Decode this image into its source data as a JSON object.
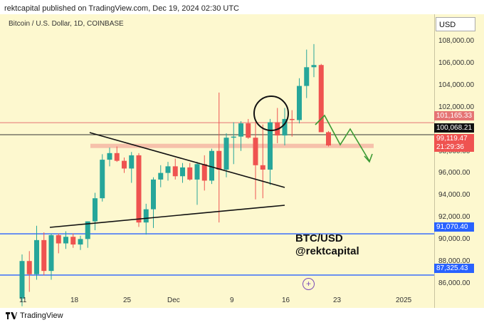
{
  "header": {
    "publish_line": "rektcapital published on TradingView.com, Dec 19, 2024 02:30 UTC"
  },
  "chart": {
    "symbol_line": "Bitcoin / U.S. Dollar, 1D, COINBASE",
    "currency_button": "USD",
    "annotation_line1": "BTC/USD",
    "annotation_line2": "@rektcapital",
    "add_icon": "plus-circle-icon"
  },
  "price_labels": [
    {
      "text": "101,165.33",
      "color": "#e57373"
    },
    {
      "text": "100,068.21",
      "color": "#111111"
    },
    {
      "text": "99,119.47",
      "color": "#ef5350"
    },
    {
      "text": "21:29:36",
      "color": "#ef5350"
    },
    {
      "text": "91,070.40",
      "color": "#2962ff"
    },
    {
      "text": "87,325.43",
      "color": "#2962ff"
    }
  ],
  "footer": {
    "brand": "TradingView",
    "logo_icon": "tradingview-logo-icon"
  },
  "colors": {
    "up": "#26a69a",
    "down": "#ef5350",
    "background": "#fdf8cf",
    "level_line": "#2962ff"
  },
  "chart_data": {
    "type": "candlestick",
    "title": "Bitcoin / U.S. Dollar, 1D, COINBASE",
    "y_axis": {
      "ticks": [
        "108,000.00",
        "106,000.00",
        "104,000.00",
        "102,000.00",
        "100,000.00",
        "98,000.00",
        "96,000.00",
        "94,000.00",
        "92,000.00",
        "90,000.00",
        "88,000.00",
        "86,000.00"
      ],
      "range": [
        84500,
        109800
      ]
    },
    "x_axis": {
      "ticks": [
        "11",
        "18",
        "25",
        "Dec",
        "9",
        "16",
        "23",
        "2025"
      ]
    },
    "candles": [
      {
        "o": 85200,
        "h": 89200,
        "l": 84500,
        "c": 88600
      },
      {
        "o": 88600,
        "h": 89500,
        "l": 85800,
        "c": 87400
      },
      {
        "o": 87400,
        "h": 91800,
        "l": 86900,
        "c": 90500
      },
      {
        "o": 90500,
        "h": 91200,
        "l": 87300,
        "c": 87700
      },
      {
        "o": 87700,
        "h": 91100,
        "l": 86900,
        "c": 90950
      },
      {
        "o": 90950,
        "h": 91100,
        "l": 89300,
        "c": 90200
      },
      {
        "o": 90200,
        "h": 91300,
        "l": 89700,
        "c": 90800
      },
      {
        "o": 90800,
        "h": 91100,
        "l": 89800,
        "c": 90100
      },
      {
        "o": 90100,
        "h": 90900,
        "l": 89600,
        "c": 90600
      },
      {
        "o": 90600,
        "h": 92200,
        "l": 89800,
        "c": 92200
      },
      {
        "o": 92200,
        "h": 94800,
        "l": 91400,
        "c": 94300
      },
      {
        "o": 94300,
        "h": 98300,
        "l": 94000,
        "c": 97800
      },
      {
        "o": 97800,
        "h": 98900,
        "l": 97200,
        "c": 98400
      },
      {
        "o": 98400,
        "h": 99000,
        "l": 97600,
        "c": 97700
      },
      {
        "o": 97700,
        "h": 98000,
        "l": 96600,
        "c": 97000
      },
      {
        "o": 97000,
        "h": 98500,
        "l": 95700,
        "c": 98200
      },
      {
        "o": 98200,
        "h": 98400,
        "l": 91700,
        "c": 92100
      },
      {
        "o": 92100,
        "h": 93800,
        "l": 91000,
        "c": 93300
      },
      {
        "o": 93300,
        "h": 96200,
        "l": 91600,
        "c": 96000
      },
      {
        "o": 96000,
        "h": 97300,
        "l": 95300,
        "c": 96600
      },
      {
        "o": 96600,
        "h": 97600,
        "l": 95900,
        "c": 97200
      },
      {
        "o": 97200,
        "h": 97900,
        "l": 96000,
        "c": 96300
      },
      {
        "o": 96300,
        "h": 97500,
        "l": 95700,
        "c": 97100
      },
      {
        "o": 97100,
        "h": 97500,
        "l": 95900,
        "c": 96000
      },
      {
        "o": 96000,
        "h": 97600,
        "l": 93700,
        "c": 97400
      },
      {
        "o": 97400,
        "h": 98200,
        "l": 95000,
        "c": 95900
      },
      {
        "o": 95900,
        "h": 98800,
        "l": 95600,
        "c": 98600
      },
      {
        "o": 98600,
        "h": 103900,
        "l": 92100,
        "c": 96900
      },
      {
        "o": 96900,
        "h": 100200,
        "l": 96200,
        "c": 99800
      },
      {
        "o": 99800,
        "h": 101200,
        "l": 97400,
        "c": 99900
      },
      {
        "o": 99900,
        "h": 101300,
        "l": 98600,
        "c": 101100
      },
      {
        "o": 101100,
        "h": 101500,
        "l": 99700,
        "c": 99800
      },
      {
        "o": 99800,
        "h": 101200,
        "l": 94200,
        "c": 97300
      },
      {
        "o": 97300,
        "h": 101000,
        "l": 94300,
        "c": 96900
      },
      {
        "o": 96900,
        "h": 101500,
        "l": 95500,
        "c": 101200
      },
      {
        "o": 101200,
        "h": 102500,
        "l": 99300,
        "c": 100000
      },
      {
        "o": 100000,
        "h": 102500,
        "l": 99100,
        "c": 101500
      },
      {
        "o": 101500,
        "h": 102300,
        "l": 99900,
        "c": 101400
      },
      {
        "o": 101400,
        "h": 105200,
        "l": 101100,
        "c": 104500
      },
      {
        "o": 104500,
        "h": 107800,
        "l": 103400,
        "c": 106200
      },
      {
        "o": 106200,
        "h": 108300,
        "l": 105300,
        "c": 106400
      },
      {
        "o": 106400,
        "h": 106500,
        "l": 100400,
        "c": 100300
      },
      {
        "o": 100300,
        "h": 100400,
        "l": 99000,
        "c": 99100
      }
    ],
    "levels": [
      {
        "price": 101165.33,
        "style": "thin-red"
      },
      {
        "price": 100068.21,
        "style": "thin-black"
      },
      {
        "price": 99119.47,
        "style": "zone"
      },
      {
        "price": 91070.4,
        "style": "blue"
      },
      {
        "price": 87325.43,
        "style": "blue"
      }
    ],
    "annotations": [
      "symmetrical triangle",
      "circle at breakout retest",
      "green projected path"
    ]
  }
}
